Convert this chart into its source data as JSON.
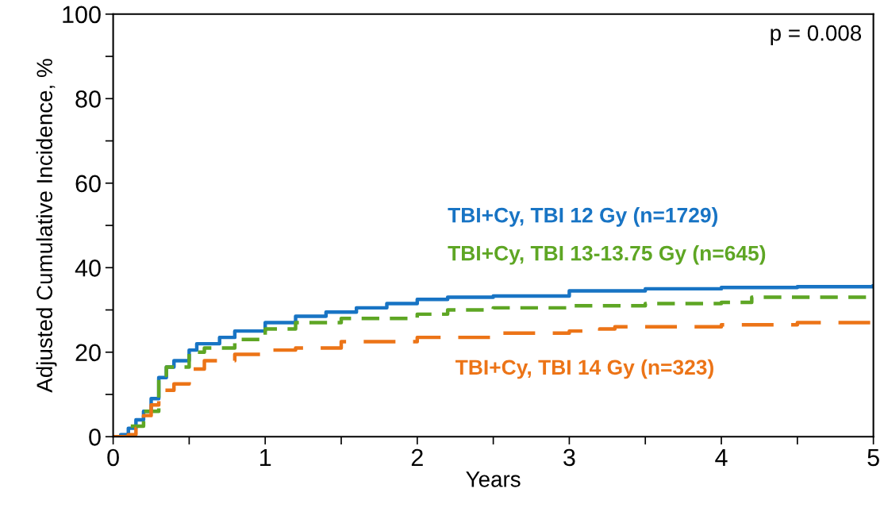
{
  "chart_data": {
    "type": "step",
    "xlabel": "Years",
    "ylabel": "Adjusted Cumulative Incidence, %",
    "annotations": [
      "p = 0.008"
    ],
    "xlim": [
      0,
      5
    ],
    "ylim": [
      0,
      100
    ],
    "xticks": [
      0,
      {
        "value": 0.5,
        "label": null
      },
      1,
      {
        "value": 1.5,
        "label": null
      },
      2,
      {
        "value": 2.5,
        "label": null
      },
      3,
      {
        "value": 3.5,
        "label": null
      },
      4,
      {
        "value": 4.5,
        "label": null
      },
      5
    ],
    "yticks": [
      0,
      {
        "value": 10,
        "label": null
      },
      20,
      {
        "value": 30,
        "label": null
      },
      40,
      {
        "value": 50,
        "label": null
      },
      60,
      {
        "value": 70,
        "label": null
      },
      80,
      {
        "value": 90,
        "label": null
      },
      100
    ],
    "grid": false,
    "legend": false,
    "marker": "none",
    "series": [
      {
        "name": "TBI+Cy, TBI 12 Gy (n=1729)",
        "color": "#1874c4",
        "line_style": "solid",
        "x": [
          0,
          0.05,
          0.1,
          0.15,
          0.2,
          0.25,
          0.3,
          0.35,
          0.4,
          0.5,
          0.55,
          0.7,
          0.8,
          1.0,
          1.2,
          1.4,
          1.6,
          1.8,
          2.0,
          2.2,
          2.5,
          3.0,
          3.5,
          4.0,
          4.5,
          5.0
        ],
        "values": [
          0,
          0.5,
          2,
          4,
          6,
          9,
          14,
          16.5,
          18,
          20.5,
          22,
          23.5,
          25,
          27,
          28.5,
          29.5,
          30.5,
          31.5,
          32.5,
          33,
          33.3,
          34.5,
          35,
          35.3,
          35.5,
          35.7
        ]
      },
      {
        "name": "TBI+Cy, TBI 13-13.75 Gy (n=645)",
        "color": "#5ea624",
        "line_style": "dashed",
        "x": [
          0,
          0.1,
          0.2,
          0.3,
          0.35,
          0.5,
          0.6,
          0.8,
          1.0,
          1.2,
          1.5,
          2.0,
          2.2,
          2.5,
          3.0,
          3.5,
          4.0,
          4.2,
          5.0
        ],
        "values": [
          0,
          2.5,
          6,
          14.5,
          16.5,
          20,
          21,
          23,
          25.5,
          27,
          28,
          29,
          30,
          30.5,
          31,
          31.5,
          31.8,
          33,
          33.2
        ]
      },
      {
        "name": "TBI+Cy, TBI 14 Gy (n=323)",
        "color": "#ec7417",
        "line_style": "longdash",
        "x": [
          0,
          0.1,
          0.15,
          0.2,
          0.25,
          0.3,
          0.4,
          0.5,
          0.6,
          0.8,
          1.0,
          1.2,
          1.5,
          2.0,
          2.5,
          3.0,
          3.2,
          3.3,
          4.0,
          4.5,
          5.0
        ],
        "values": [
          0,
          0.5,
          2,
          5,
          7.5,
          11,
          12.5,
          16,
          18,
          19.5,
          20.5,
          21,
          22.5,
          23.5,
          24.5,
          25,
          25.5,
          26,
          26.5,
          27,
          27
        ]
      }
    ]
  }
}
